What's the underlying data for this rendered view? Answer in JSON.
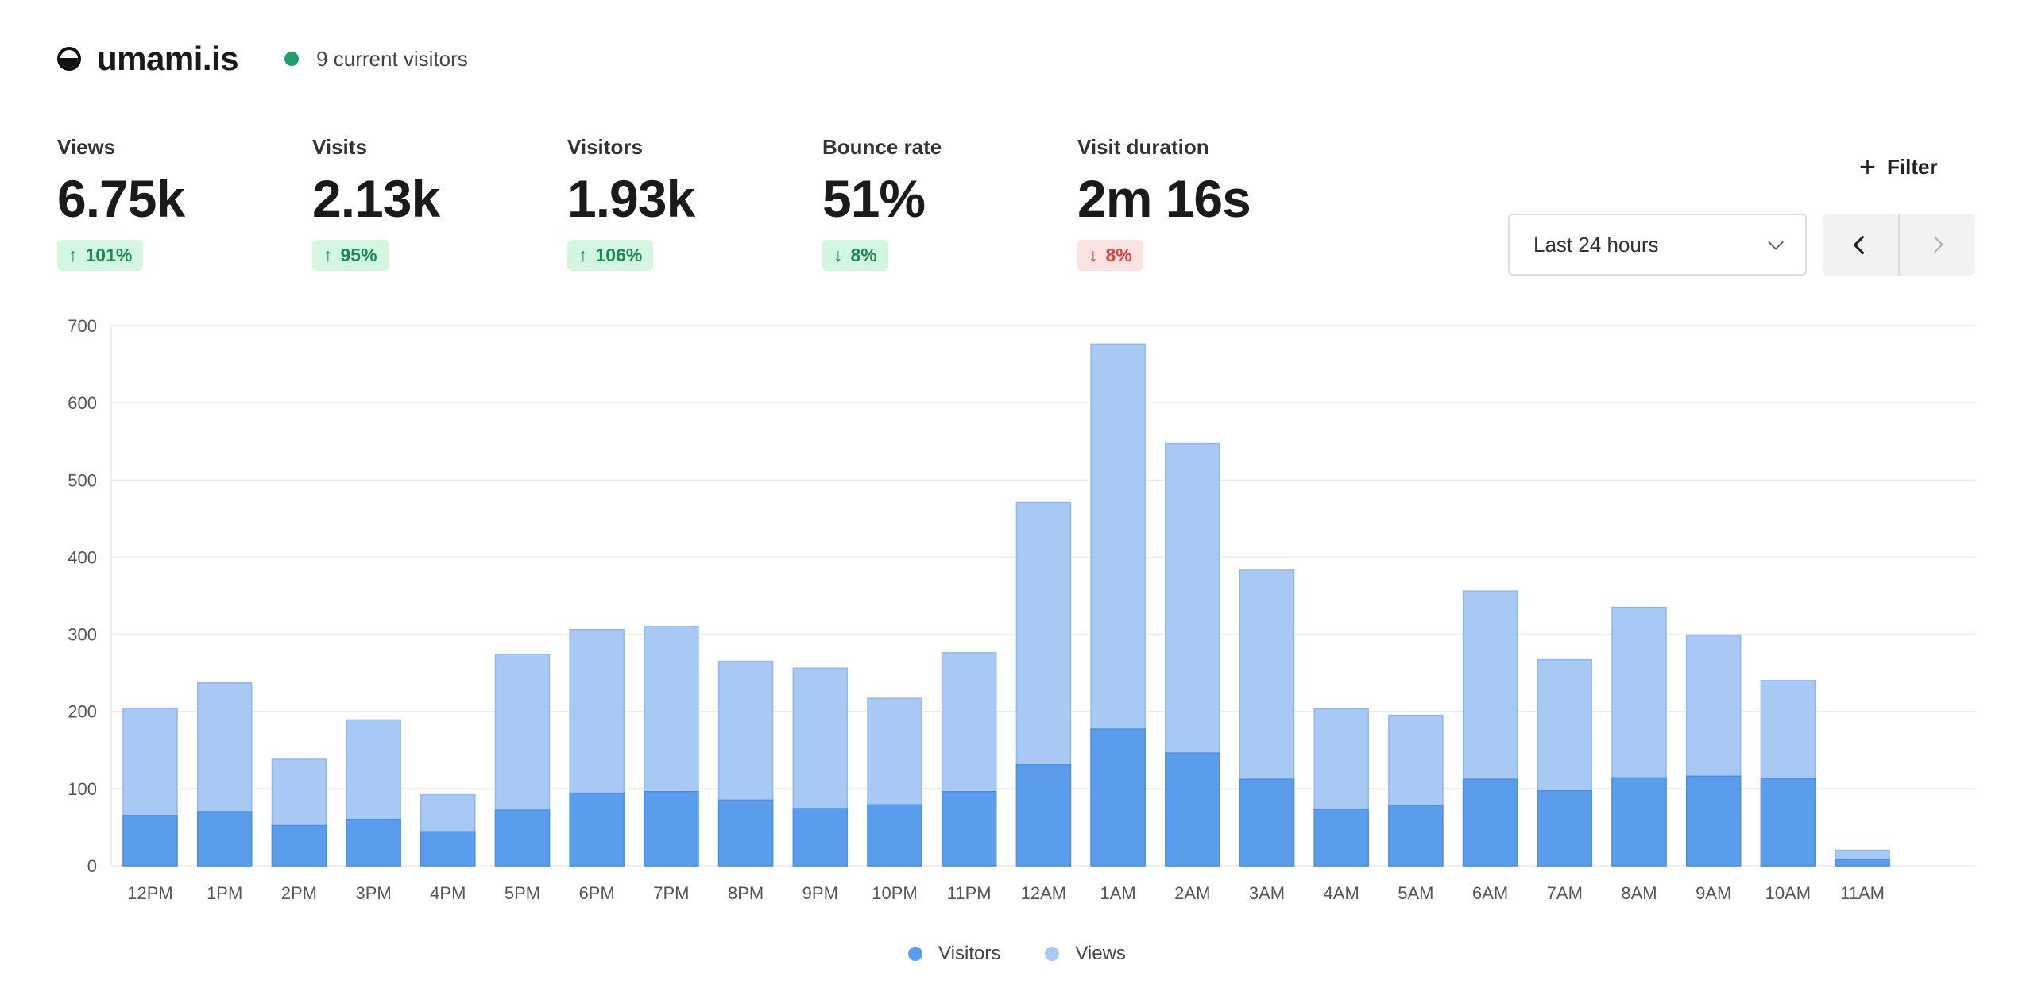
{
  "header": {
    "site_name": "umami.is",
    "live_text": "9 current visitors",
    "logo_icon": "umami-logo-icon",
    "live_color": "#1f9d6b"
  },
  "metrics": [
    {
      "label": "Views",
      "value": "6.75k",
      "change": "101%",
      "direction": "up",
      "tone": "up"
    },
    {
      "label": "Visits",
      "value": "2.13k",
      "change": "95%",
      "direction": "up",
      "tone": "up"
    },
    {
      "label": "Visitors",
      "value": "1.93k",
      "change": "106%",
      "direction": "up",
      "tone": "up"
    },
    {
      "label": "Bounce rate",
      "value": "51%",
      "change": "8%",
      "direction": "down",
      "tone": "down-good"
    },
    {
      "label": "Visit duration",
      "value": "2m 16s",
      "change": "8%",
      "direction": "down",
      "tone": "down-bad"
    }
  ],
  "toolbar": {
    "filter_label": "Filter",
    "range_value": "Last 24 hours"
  },
  "chart_data": {
    "type": "bar",
    "categories": [
      "12PM",
      "1PM",
      "2PM",
      "3PM",
      "4PM",
      "5PM",
      "6PM",
      "7PM",
      "8PM",
      "9PM",
      "10PM",
      "11PM",
      "12AM",
      "1AM",
      "2AM",
      "3AM",
      "4AM",
      "5AM",
      "6AM",
      "7AM",
      "8AM",
      "9AM",
      "10AM",
      "11AM"
    ],
    "series": [
      {
        "name": "Visitors",
        "color": "#5a9ded",
        "values": [
          65,
          70,
          52,
          60,
          44,
          72,
          94,
          96,
          85,
          74,
          79,
          96,
          131,
          177,
          146,
          112,
          73,
          78,
          112,
          97,
          114,
          116,
          113,
          8
        ]
      },
      {
        "name": "Views",
        "color": "#a9c9f5",
        "values": [
          204,
          237,
          138,
          189,
          92,
          274,
          306,
          310,
          265,
          256,
          217,
          276,
          471,
          676,
          547,
          383,
          203,
          195,
          356,
          267,
          335,
          299,
          240,
          20
        ]
      }
    ],
    "overlay": true,
    "ylim": [
      0,
      700
    ],
    "yticks": [
      0,
      100,
      200,
      300,
      400,
      500,
      600,
      700
    ],
    "grid": true,
    "legend": "bottom-center"
  }
}
